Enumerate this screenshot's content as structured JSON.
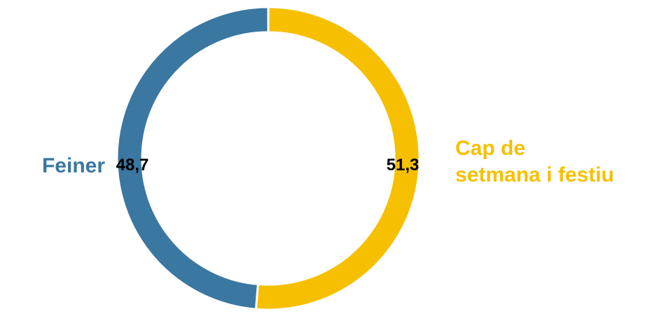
{
  "chart_data": {
    "type": "pie",
    "donut": true,
    "categories": [
      "Feiner",
      "Cap de setmana i festiu"
    ],
    "values": [
      48.7,
      51.3
    ],
    "value_labels": [
      "48,7",
      "51,3"
    ],
    "category_label_lines": [
      [
        "Feiner"
      ],
      [
        "Cap de",
        "setmana i festiu"
      ]
    ],
    "colors": [
      "#3a77a1",
      "#f6c000"
    ],
    "title": "",
    "legend": "none"
  }
}
